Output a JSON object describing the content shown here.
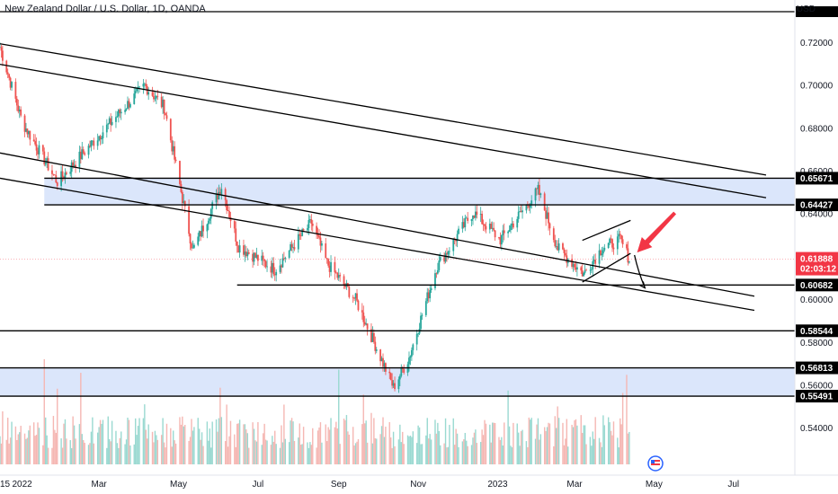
{
  "header": {
    "title": "New Zealand Dollar / U.S. Dollar, 1D, OANDA",
    "currency": "USD"
  },
  "colors": {
    "up": "#26a69a",
    "down": "#ef5350",
    "zone_fill": "#dbe6fb",
    "line": "#000000",
    "arrow": "#f23645",
    "price_badge": "#f23645",
    "level_badge": "#000000"
  },
  "chart_data": {
    "type": "candlestick",
    "symbol": "NZDUSD",
    "timeframe": "1D",
    "ylim": [
      0.5306,
      0.7345
    ],
    "y_ticks": [
      {
        "value": 0.72,
        "label": "0.72000"
      },
      {
        "value": 0.7,
        "label": "0.70000"
      },
      {
        "value": 0.68,
        "label": "0.68000"
      },
      {
        "value": 0.66,
        "label": "0.66000"
      },
      {
        "value": 0.64,
        "label": "0.64000"
      },
      {
        "value": 0.62,
        "label": "0.62000"
      },
      {
        "value": 0.6,
        "label": "0.60000"
      },
      {
        "value": 0.58,
        "label": "0.58000"
      },
      {
        "value": 0.56,
        "label": "0.56000"
      },
      {
        "value": 0.54,
        "label": "0.54000"
      }
    ],
    "x_ticks": [
      {
        "date": "2021-12-15",
        "label": "15"
      },
      {
        "date": "2022-01-01",
        "label": "2022"
      },
      {
        "date": "2022-03-01",
        "label": "Mar"
      },
      {
        "date": "2022-05-01",
        "label": "May"
      },
      {
        "date": "2022-07-01",
        "label": "Jul"
      },
      {
        "date": "2022-09-01",
        "label": "Sep"
      },
      {
        "date": "2022-11-01",
        "label": "Nov"
      },
      {
        "date": "2023-01-01",
        "label": "2023"
      },
      {
        "date": "2023-03-01",
        "label": "Mar"
      },
      {
        "date": "2023-05-01",
        "label": "May"
      },
      {
        "date": "2023-07-01",
        "label": "Jul"
      }
    ],
    "x_range": [
      "2021-12-15",
      "2023-07-26"
    ],
    "price_path": [
      [
        "2021-12-15",
        0.718
      ],
      [
        "2022-01-01",
        0.683
      ],
      [
        "2022-01-28",
        0.655
      ],
      [
        "2022-02-25",
        0.674
      ],
      [
        "2022-04-05",
        0.7
      ],
      [
        "2022-04-20",
        0.69
      ],
      [
        "2022-05-12",
        0.623
      ],
      [
        "2022-06-03",
        0.653
      ],
      [
        "2022-06-16",
        0.625
      ],
      [
        "2022-07-14",
        0.614
      ],
      [
        "2022-08-11",
        0.636
      ],
      [
        "2022-08-23",
        0.617
      ],
      [
        "2022-09-14",
        0.6
      ],
      [
        "2022-10-13",
        0.559
      ],
      [
        "2022-10-25",
        0.573
      ],
      [
        "2022-11-15",
        0.615
      ],
      [
        "2022-12-13",
        0.641
      ],
      [
        "2023-01-03",
        0.628
      ],
      [
        "2023-02-01",
        0.651
      ],
      [
        "2023-02-16",
        0.624
      ],
      [
        "2023-03-08",
        0.612
      ],
      [
        "2023-03-22",
        0.624
      ],
      [
        "2023-04-05",
        0.628
      ],
      [
        "2023-04-12",
        0.6189
      ]
    ],
    "current_price": {
      "value": 0.61888,
      "label": "0.61888",
      "countdown": "02:03:12"
    },
    "levels": [
      {
        "value": 0.65671,
        "label": "0.65671",
        "start": "2022-01-18"
      },
      {
        "value": 0.64427,
        "label": "0.64427",
        "start": "2022-01-18"
      },
      {
        "value": 0.60682,
        "label": "0.60682",
        "start": "2022-06-15"
      },
      {
        "value": 0.58544,
        "label": "0.58544",
        "start": "2021-12-15"
      },
      {
        "value": 0.56813,
        "label": "0.56813",
        "start": "2021-12-15"
      },
      {
        "value": 0.55491,
        "label": "0.55491",
        "start": "2021-12-15"
      }
    ],
    "top_line": {
      "value": 0.7345,
      "label": "0.7345"
    },
    "zones": [
      {
        "from": 0.64427,
        "to": 0.65671,
        "start": "2022-01-18"
      },
      {
        "from": 0.55491,
        "to": 0.56813,
        "start": "2021-12-15"
      }
    ],
    "trendlines": [
      {
        "from": [
          "2021-12-15",
          0.7195
        ],
        "to": [
          "2023-07-26",
          0.6582
        ]
      },
      {
        "from": [
          "2021-12-15",
          0.7099
        ],
        "to": [
          "2023-07-26",
          0.6476
        ]
      },
      {
        "from": [
          "2021-12-15",
          0.6685
        ],
        "to": [
          "2023-07-17",
          0.6016
        ]
      },
      {
        "from": [
          "2021-12-15",
          0.6567
        ],
        "to": [
          "2023-07-17",
          0.595
        ]
      },
      {
        "from": [
          "2023-03-07",
          0.6277
        ],
        "to": [
          "2023-04-13",
          0.637
        ]
      },
      {
        "from": [
          "2023-03-07",
          0.6082
        ],
        "to": [
          "2023-04-13",
          0.6216
        ]
      }
    ],
    "annotation_arrows": [
      {
        "kind": "down-arrow",
        "from": [
          "2023-04-16",
          0.6208
        ],
        "to": [
          "2023-04-24",
          0.6055
        ]
      },
      {
        "kind": "pointer-arrow",
        "from": [
          "2023-05-17",
          0.6405
        ],
        "to": [
          "2023-04-18",
          0.622
        ]
      }
    ],
    "grid": false,
    "volume": {
      "shown": true,
      "max_relative_height": 1.0
    }
  }
}
